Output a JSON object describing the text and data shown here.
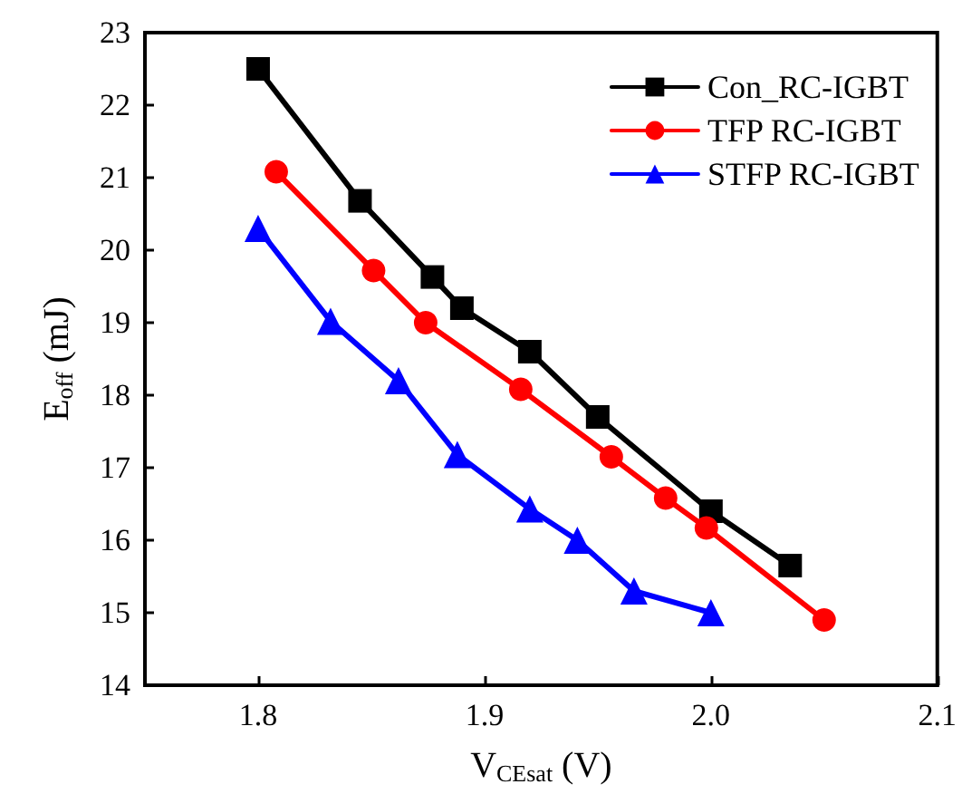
{
  "chart_data": {
    "type": "line",
    "xlabel": "V$_{CEsat}$ (V)",
    "ylabel": "E$_{off}$ (mJ)",
    "xlim": [
      1.75,
      2.1
    ],
    "xticks": [
      1.8,
      1.9,
      {
        "value": 2.0,
        "label": "2.0"
      },
      2.1
    ],
    "ylim": [
      14,
      23
    ],
    "yticks": [
      14,
      15,
      16,
      17,
      18,
      19,
      20,
      21,
      22,
      23
    ],
    "grid": false,
    "legend": "top right",
    "line_style": "solid",
    "series": [
      {
        "name": "Con_RC-IGBT",
        "color": "#000000",
        "marker": "square",
        "x": [
          1.8,
          1.845,
          1.877,
          1.89,
          1.92,
          1.95,
          2.0,
          2.035
        ],
        "values": [
          22.5,
          20.68,
          19.63,
          19.2,
          18.6,
          17.7,
          16.4,
          15.65
        ]
      },
      {
        "name": "TFP RC-IGBT",
        "color": "#ff0000",
        "marker": "circle",
        "x": [
          1.808,
          1.851,
          1.874,
          1.916,
          1.956,
          1.98,
          1.998,
          2.05
        ],
        "values": [
          21.08,
          19.72,
          19.0,
          18.08,
          17.15,
          16.58,
          16.17,
          14.9
        ]
      },
      {
        "name": "STFP RC-IGBT",
        "color": "#0000ff",
        "marker": "triangle",
        "x": [
          1.8,
          1.832,
          1.862,
          1.888,
          1.92,
          1.941,
          1.966,
          2.0
        ],
        "values": [
          20.3,
          19.02,
          18.2,
          17.18,
          16.43,
          16.0,
          15.3,
          15.0
        ]
      }
    ]
  }
}
